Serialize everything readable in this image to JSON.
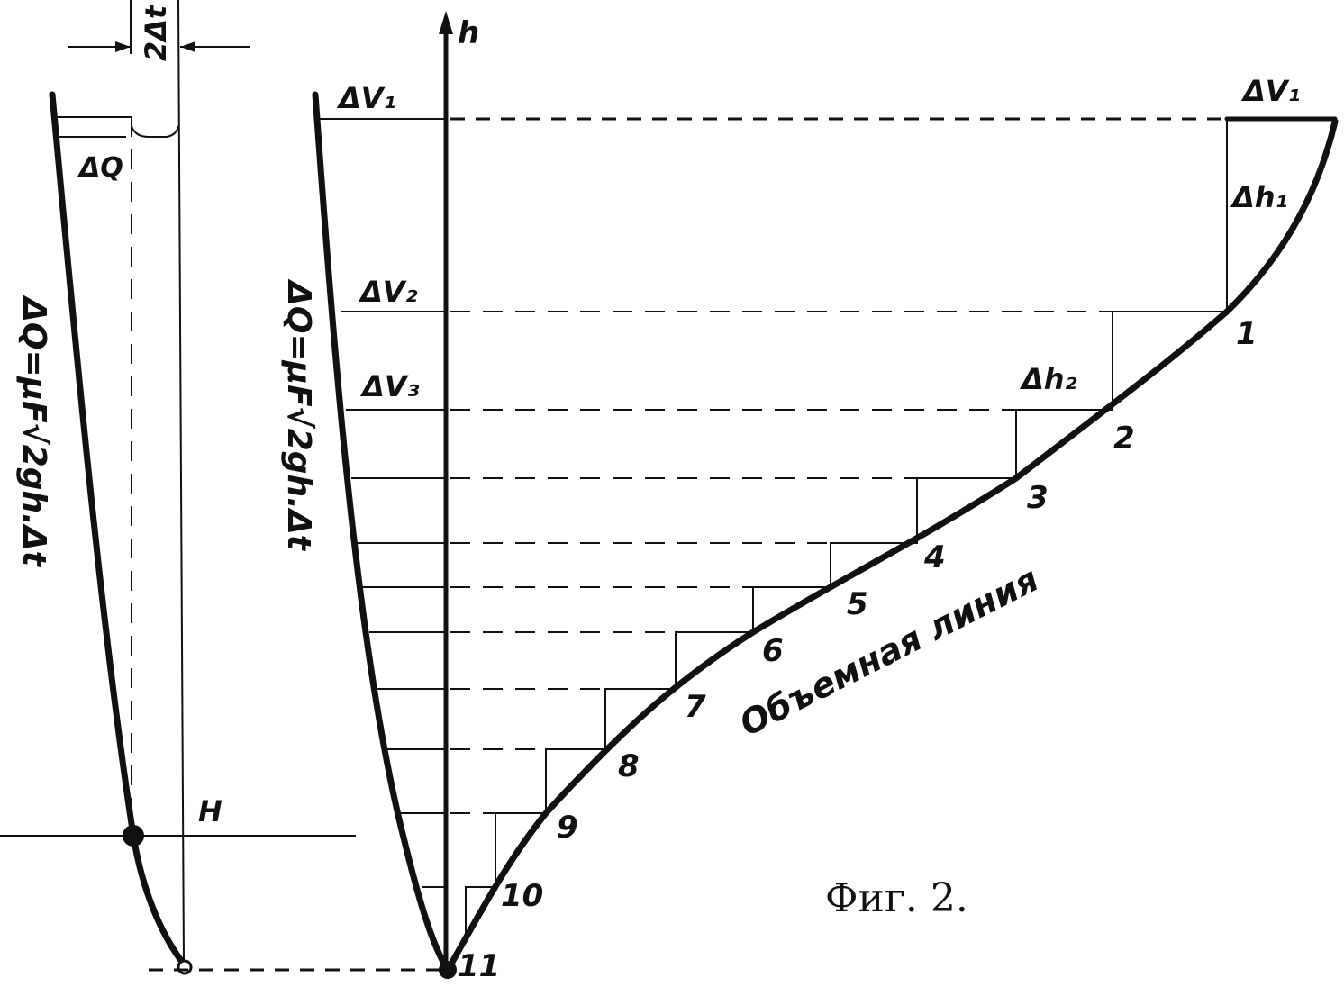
{
  "labels": {
    "two_delta_t": "2Δt",
    "delta_q": "ΔQ",
    "formula_left": "ΔQ=μF√2gh.Δt",
    "h_point": "H",
    "h_axis": "h",
    "delta_v1_left": "ΔV₁",
    "delta_v2": "ΔV₂",
    "delta_v3": "ΔV₃",
    "formula_mid": "ΔQ=μF√2gh.Δt",
    "delta_v1_right": "ΔV₁",
    "delta_h1": "Δh₁",
    "delta_h2": "Δh₂",
    "volume_line": "Объемная   линия",
    "caption": "Фиг. 2."
  },
  "points": [
    "1",
    "2",
    "3",
    "4",
    "5",
    "6",
    "7",
    "8",
    "9",
    "10",
    "11"
  ]
}
